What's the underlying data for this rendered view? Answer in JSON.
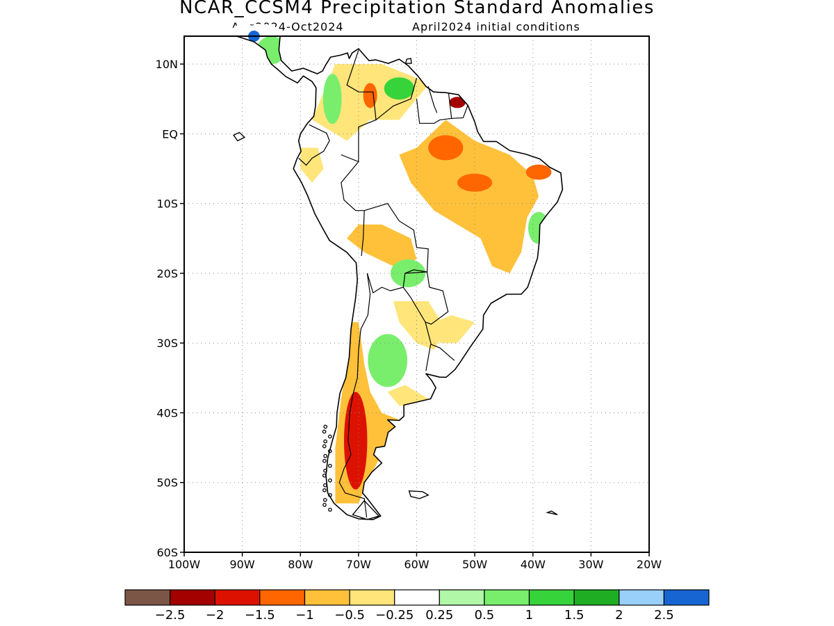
{
  "header": {
    "title": "NCAR_CCSM4 Precipitation Standard Anomalies",
    "period": "Aug2024-Oct2024",
    "init": "April2024 initial conditions"
  },
  "map": {
    "region": "South America",
    "lon_range": [
      -100,
      -20
    ],
    "lat_range": [
      -60,
      14
    ],
    "lat_ticks": [
      {
        "value": 10,
        "label": "10N"
      },
      {
        "value": 0,
        "label": "EQ"
      },
      {
        "value": -10,
        "label": "10S"
      },
      {
        "value": -20,
        "label": "20S"
      },
      {
        "value": -30,
        "label": "30S"
      },
      {
        "value": -40,
        "label": "40S"
      },
      {
        "value": -50,
        "label": "50S"
      },
      {
        "value": -60,
        "label": "60S"
      }
    ],
    "lon_ticks": [
      {
        "value": -100,
        "label": "100W"
      },
      {
        "value": -90,
        "label": "90W"
      },
      {
        "value": -80,
        "label": "80W"
      },
      {
        "value": -70,
        "label": "70W"
      },
      {
        "value": -60,
        "label": "60W"
      },
      {
        "value": -50,
        "label": "50W"
      },
      {
        "value": -40,
        "label": "40W"
      },
      {
        "value": -30,
        "label": "30W"
      },
      {
        "value": -20,
        "label": "20W"
      }
    ],
    "grid": "dotted"
  },
  "colorbar": {
    "colors": [
      "#7b5545",
      "#a30000",
      "#dd1100",
      "#ff6600",
      "#ffc13a",
      "#ffe57a",
      "#ffffff",
      "#b0f7a8",
      "#78ee6c",
      "#37d33b",
      "#1fae23",
      "#98d0f9",
      "#1765d2"
    ],
    "labels": [
      "-2.5",
      "-2",
      "-1.5",
      "-1",
      "-0.5",
      "-0.25",
      "0.25",
      "0.5",
      "1",
      "1.5",
      "2",
      "2.5"
    ]
  },
  "anomaly_regions": [
    {
      "category": "-1",
      "color": "#ff6600",
      "center": [
        -55,
        -2
      ],
      "radius": [
        3,
        1.8
      ]
    },
    {
      "category": "-1",
      "color": "#ff6600",
      "center": [
        -50,
        -7
      ],
      "radius": [
        3,
        1.3
      ]
    },
    {
      "category": "-1",
      "color": "#ff6600",
      "center": [
        -68,
        5.5
      ],
      "radius": [
        1.2,
        1.8
      ]
    },
    {
      "category": "-2",
      "color": "#a30000",
      "center": [
        -53,
        4.5
      ],
      "radius": [
        1.4,
        0.8
      ]
    },
    {
      "category": "-1",
      "color": "#ff6600",
      "center": [
        -39,
        -5.5
      ],
      "radius": [
        2.2,
        1.1
      ]
    },
    {
      "category": "-1.5",
      "color": "#dd1100",
      "center": [
        -70.5,
        -44
      ],
      "radius": [
        2,
        7
      ]
    },
    {
      "category": "1",
      "color": "#78ee6c",
      "center": [
        -65,
        -32.5
      ],
      "radius": [
        3.4,
        3.8
      ]
    },
    {
      "category": "1",
      "color": "#78ee6c",
      "center": [
        -74.5,
        5
      ],
      "radius": [
        1.6,
        3.6
      ]
    },
    {
      "category": "1",
      "color": "#78ee6c",
      "center": [
        -39,
        -13.5
      ],
      "radius": [
        1.8,
        2.3
      ]
    },
    {
      "category": "1.5",
      "color": "#37d33b",
      "center": [
        -63,
        6.5
      ],
      "radius": [
        2.6,
        1.6
      ]
    },
    {
      "category": "1",
      "color": "#78ee6c",
      "center": [
        -61.5,
        -20
      ],
      "radius": [
        3,
        2
      ]
    },
    {
      "category": "1",
      "color": "#78ee6c",
      "center": [
        -85,
        12
      ],
      "radius": [
        2.5,
        2
      ]
    },
    {
      "category": "2.5",
      "color": "#1765d2",
      "center": [
        -88,
        14
      ],
      "radius": [
        1,
        0.8
      ]
    }
  ]
}
